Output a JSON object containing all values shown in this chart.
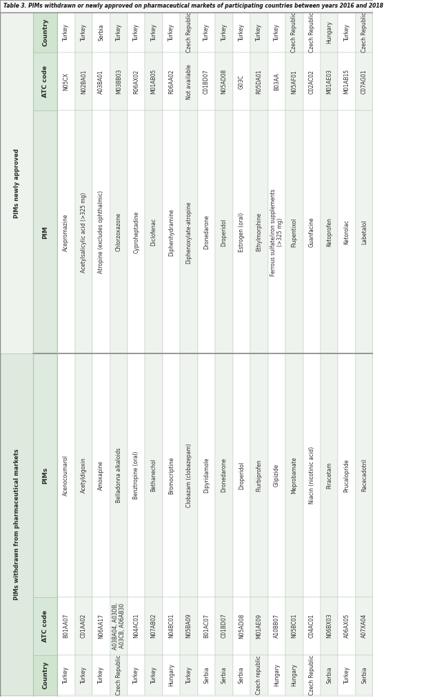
{
  "title": "Table 3. PIMs withdrawn or newly approved on pharmaceutical markets of participating countries between years 2016 and 2018",
  "left_section_header": "PIMs withdrawn from pharmaceutical markets",
  "right_section_header": "PIMs newly approved",
  "col_headers_left": [
    "PIMs",
    "ATC code",
    "Country"
  ],
  "col_headers_right": [
    "PIM",
    "ATC code",
    "Country"
  ],
  "rows": [
    [
      "Acenocoumarol",
      "B01AA07",
      "Turkey",
      "Acepromazine",
      "N05CX",
      "Turkey"
    ],
    [
      "Acetyldigoxin",
      "C01AA02",
      "Turkey",
      "Acetylsalicylic acid (>325 mg)",
      "N02BA01",
      "Turkey"
    ],
    [
      "Amoxapine",
      "N06AA17",
      "Turkey",
      "Atropine (excludes ophthalmic)",
      "A03BA01",
      "Serbia"
    ],
    [
      "Belladonna alkaloids",
      "A03BA04, A03DB,\nA03CB, A06AB30",
      "Czech Republic",
      "Chlorzoxazone",
      "M03BB03",
      "Turkey"
    ],
    [
      "Benztropine (oral)",
      "N04AC01",
      "Turkey",
      "Cyproheptadine",
      "R06AX02",
      "Turkey"
    ],
    [
      "Bethanechol",
      "N07AB02",
      "Turkey",
      "Diclofenac",
      "M01AB05",
      "Turkey"
    ],
    [
      "Bromocriptine",
      "N04BC01",
      "Hungary",
      "Diphenhydramine",
      "R06AA02",
      "Turkey"
    ],
    [
      "Clobazam (clobazepam)",
      "N05BA09",
      "Turkey",
      "Diphenoxylate-atropine",
      "Not available",
      "Czech Republic"
    ],
    [
      "Dipyridamole",
      "B01AC07",
      "Serbia",
      "Dronedarone",
      "C01BD07",
      "Turkey"
    ],
    [
      "Dronedarone",
      "C01BD07",
      "Serbia",
      "Droperidol",
      "N05AD08",
      "Turkey"
    ],
    [
      "Droperidol",
      "N05AD08",
      "Serbia",
      "Estrogen (oral)",
      "G03C",
      "Turkey"
    ],
    [
      "Flurbiprofen",
      "M01AE09",
      "Czech republic",
      "Ethylmorphine",
      "R05DA01",
      "Turkey"
    ],
    [
      "Glipizide",
      "A10BB07",
      "Hungary",
      "Ferrous sulfate/iron supplements\n(>325 mg)",
      "B03AA",
      "Turkey"
    ],
    [
      "Meprobamate",
      "N05BC01",
      "Hungary",
      "Flupentixol",
      "N05AF01",
      "Czech Republic"
    ],
    [
      "Niacin (nicotinic acid)",
      "C04AC01",
      "Czech Republic",
      "Guanfacine",
      "C02AC02",
      "Czech Republic"
    ],
    [
      "Piracetam",
      "N06BX03",
      "Serbia",
      "Ketoprofen",
      "M01AE03",
      "Hungary"
    ],
    [
      "Prucalopride",
      "A06AX05",
      "Turkey",
      "Ketorolac",
      "M01AB15",
      "Turkey"
    ],
    [
      "Racecadotril",
      "A07XA04",
      "Serbia",
      "Labetalol",
      "C07AG01",
      "Czech Republic"
    ]
  ],
  "bg_white": "#ffffff",
  "bg_light_green": "#eef3ee",
  "bg_mid_green": "#ddeadd",
  "bg_header_green": "#d0e4d0",
  "border_color": "#b0c4b0",
  "text_color": "#2a2a2a",
  "title_color": "#111111",
  "section_header_bg": "#c8ddc8"
}
